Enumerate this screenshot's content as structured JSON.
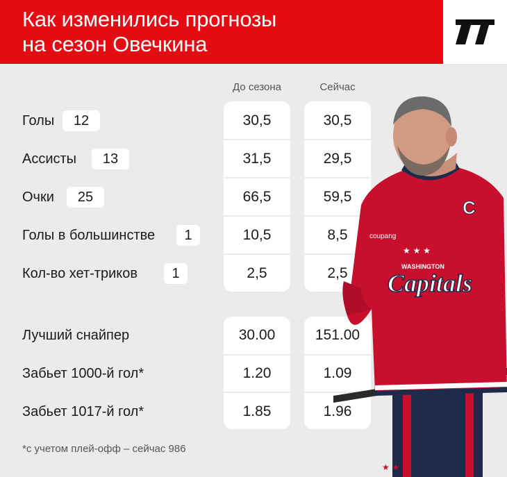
{
  "header": {
    "title_line1": "Как изменились прогнозы",
    "title_line2": "на сезон Овечкина",
    "logo_icon": "brand-logo-icon"
  },
  "columns": {
    "before": "До сезона",
    "now": "Сейчас"
  },
  "stats": [
    {
      "label": "Голы",
      "badge": "12",
      "before": "30,5",
      "now": "30,5"
    },
    {
      "label": "Ассисты",
      "badge": "13",
      "before": "31,5",
      "now": "29,5"
    },
    {
      "label": "Очки",
      "badge": "25",
      "before": "66,5",
      "now": "59,5"
    },
    {
      "label": "Голы в большинстве",
      "badge": "1",
      "before": "10,5",
      "now": "8,5"
    },
    {
      "label": "Кол-во хет-триков",
      "badge": "1",
      "before": "2,5",
      "now": "2,5"
    }
  ],
  "odds": [
    {
      "label": "Лучший снайпер",
      "before": "30.00",
      "now": "151.00"
    },
    {
      "label": "Забьет 1000-й гол*",
      "before": "1.20",
      "now": "1.09"
    },
    {
      "label": "Забьет 1017-й гол*",
      "before": "1.85",
      "now": "1.96"
    }
  ],
  "player": {
    "jersey_brand": "coupang",
    "jersey_city": "WASHINGTON",
    "jersey_team": "Capitals",
    "jersey_captain": "C"
  },
  "footnote": "*с учетом плей-офф – сейчас 986",
  "colors": {
    "accent": "#e20c12",
    "background": "#ebebeb",
    "panel": "#ffffff"
  }
}
